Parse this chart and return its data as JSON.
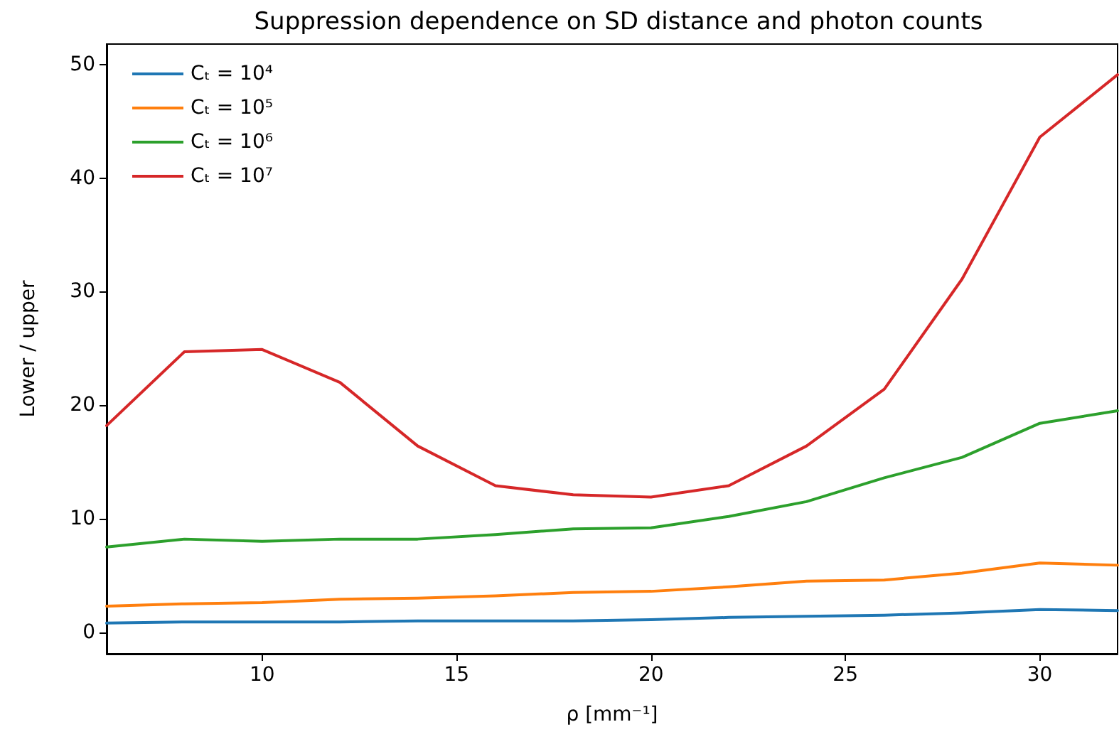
{
  "chart_data": {
    "type": "line",
    "title": "Suppression dependence on SD distance and photon counts",
    "xlabel": "ρ [mm⁻¹]",
    "ylabel": "Lower / upper",
    "x": [
      6,
      8,
      10,
      12,
      14,
      16,
      18,
      20,
      22,
      24,
      26,
      28,
      30,
      32
    ],
    "series": [
      {
        "name": "Cₜ = 10⁴",
        "color": "#1f77b4",
        "values": [
          0.8,
          0.9,
          0.9,
          0.9,
          1.0,
          1.0,
          1.0,
          1.1,
          1.3,
          1.4,
          1.5,
          1.7,
          2.0,
          1.9
        ]
      },
      {
        "name": "Cₜ = 10⁵",
        "color": "#ff7f0e",
        "values": [
          2.3,
          2.5,
          2.6,
          2.9,
          3.0,
          3.2,
          3.5,
          3.6,
          4.0,
          4.5,
          4.6,
          5.2,
          6.1,
          5.9
        ]
      },
      {
        "name": "Cₜ = 10⁶",
        "color": "#2ca02c",
        "values": [
          7.5,
          8.2,
          8.0,
          8.2,
          8.2,
          8.6,
          9.1,
          9.2,
          10.2,
          11.5,
          13.6,
          15.4,
          18.4,
          19.5
        ]
      },
      {
        "name": "Cₜ = 10⁷",
        "color": "#d62728",
        "values": [
          18.2,
          24.7,
          24.9,
          22.0,
          16.4,
          12.9,
          12.1,
          11.9,
          12.9,
          16.4,
          21.4,
          31.1,
          43.6,
          49.1
        ]
      }
    ],
    "xlim": [
      6,
      32
    ],
    "xticks": [
      10,
      15,
      20,
      25,
      30
    ],
    "ylim": [
      -1.9,
      51.8
    ],
    "yticks": [
      0,
      10,
      20,
      30,
      40,
      50
    ],
    "grid": false,
    "legend": "top left",
    "marker": "none",
    "line_style": "solid"
  }
}
